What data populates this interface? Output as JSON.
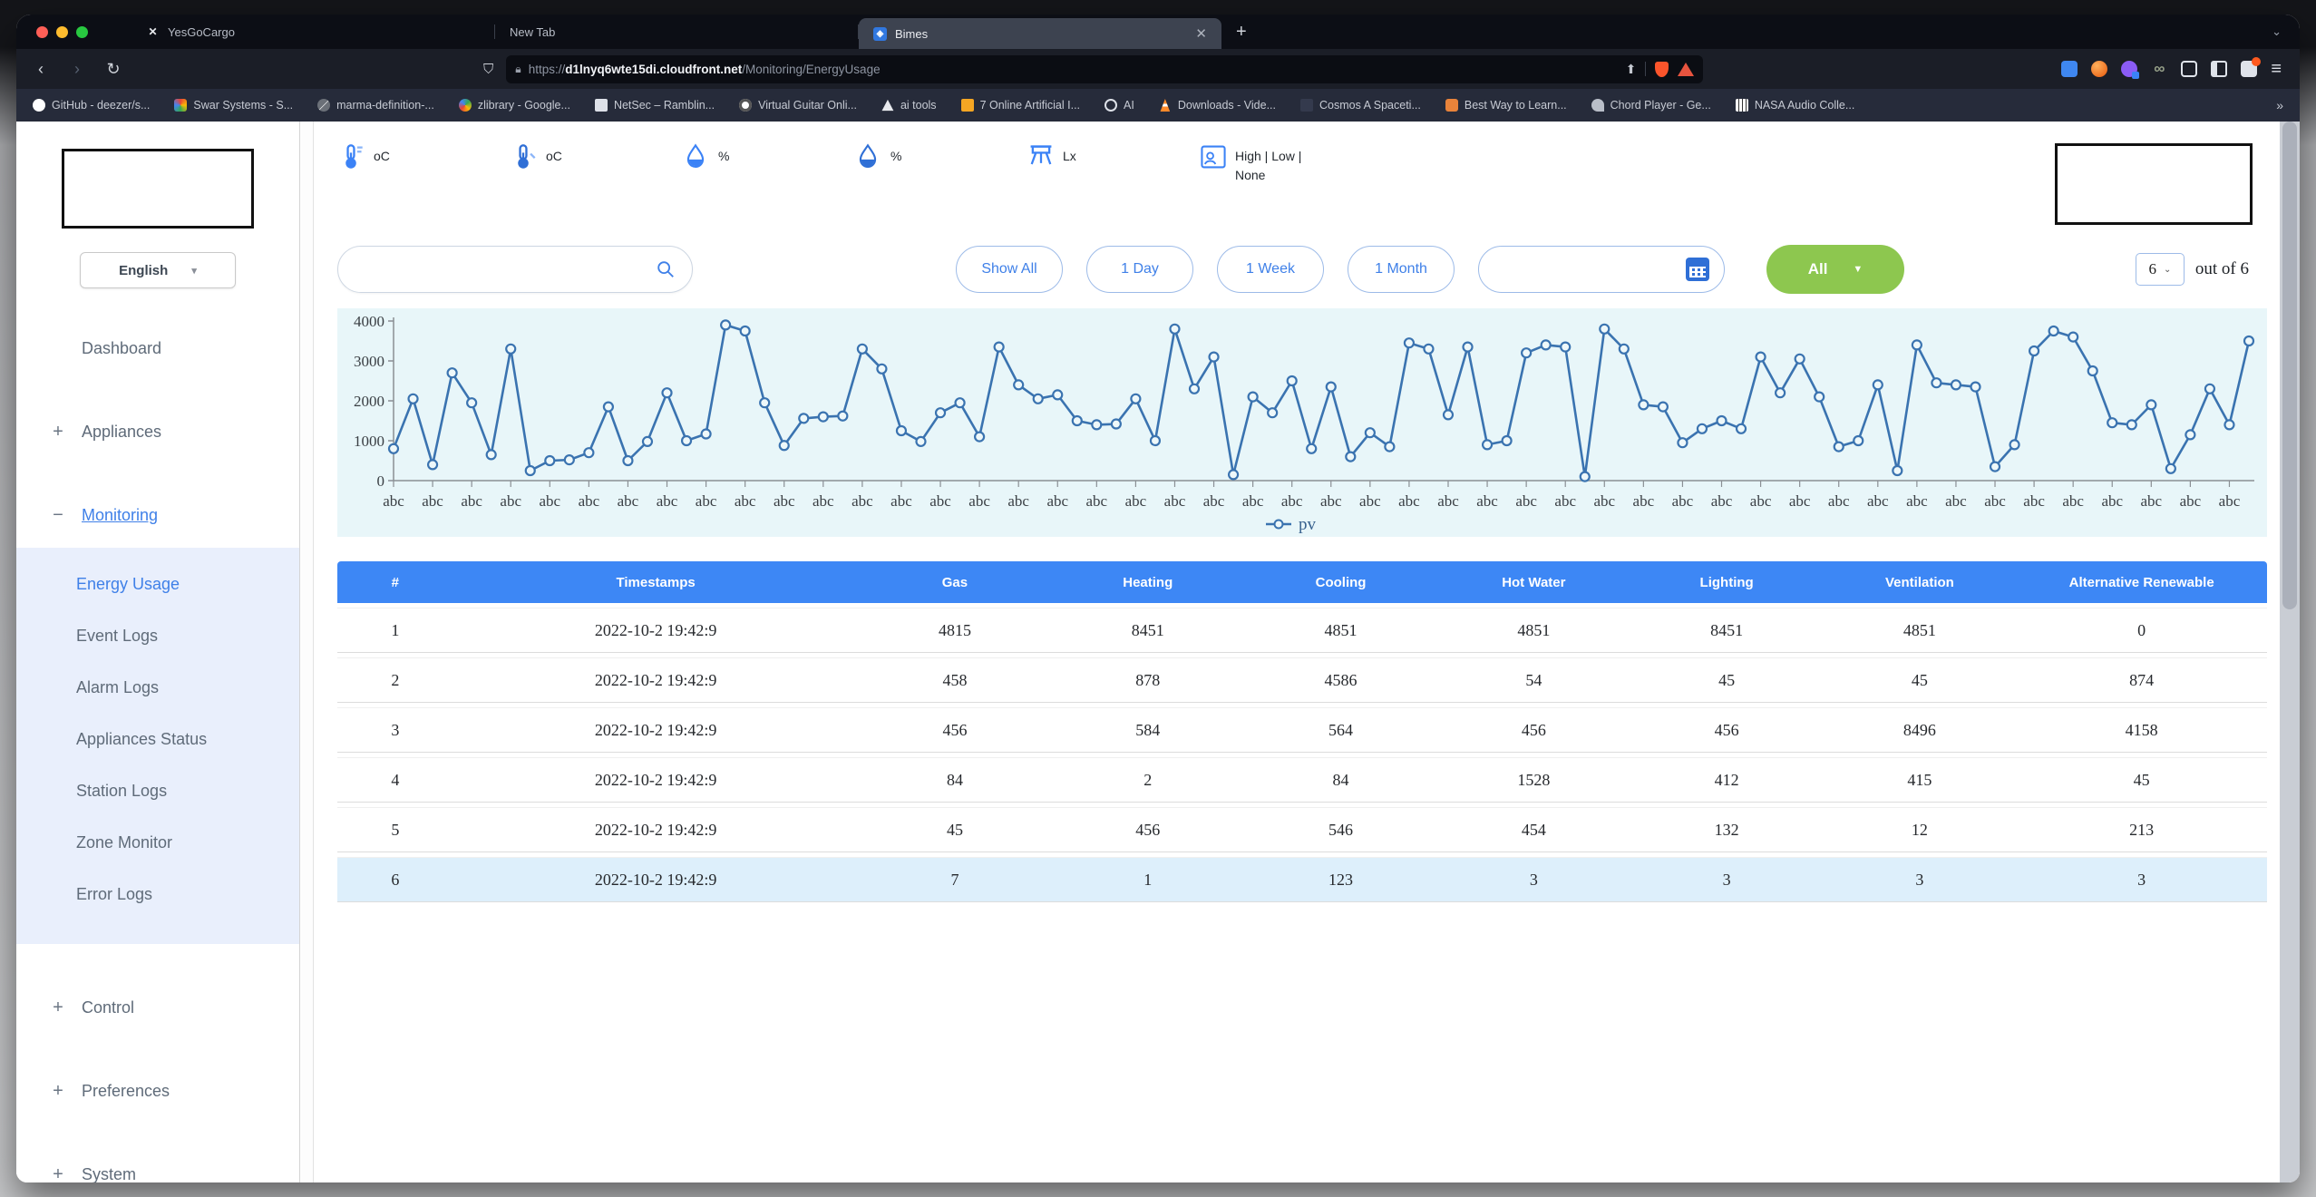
{
  "browser": {
    "tabs": [
      {
        "label": "YesGoCargo",
        "favicon": "yesgocargo",
        "favicon_glyph": "✕",
        "active": false
      },
      {
        "label": "New Tab",
        "favicon": null,
        "favicon_glyph": "",
        "active": false
      },
      {
        "label": "Bimes",
        "favicon": "bimes",
        "favicon_glyph": "◈",
        "active": true
      }
    ],
    "new_tab_label": "+",
    "overflow_chevron": "⌄",
    "url": {
      "scheme": "https://",
      "domain": "d1lnyq6wte15di.cloudfront.net",
      "path": "/Monitoring/EnergyUsage"
    },
    "nav": {
      "back": "‹",
      "forward": "›",
      "reload": "↻",
      "bookmark_flag": "⛉"
    },
    "extensions": [
      "translate",
      "fox",
      "purple",
      "infinity",
      "puzzle",
      "panel",
      "profile"
    ],
    "menu_glyph": "≡",
    "bookmarks": [
      {
        "label": "GitHub - deezer/s...",
        "icon": "github"
      },
      {
        "label": "Swar Systems - S...",
        "icon": "swar"
      },
      {
        "label": "marma-definition-...",
        "icon": "marma"
      },
      {
        "label": "zlibrary - Google...",
        "icon": "google"
      },
      {
        "label": "NetSec – Ramblin...",
        "icon": "netsec"
      },
      {
        "label": "Virtual Guitar Onli...",
        "icon": "guitar"
      },
      {
        "label": "ai tools",
        "icon": "aitools"
      },
      {
        "label": "7 Online Artificial I...",
        "icon": "seven"
      },
      {
        "label": "AI",
        "icon": "aiglobe"
      },
      {
        "label": "Downloads - Vide...",
        "icon": "vlc"
      },
      {
        "label": "Cosmos A Spaceti...",
        "icon": "cosmos"
      },
      {
        "label": "Best Way to Learn...",
        "icon": "bestway"
      },
      {
        "label": "Chord Player - Ge...",
        "icon": "chord"
      },
      {
        "label": "NASA Audio Colle...",
        "icon": "nasa"
      }
    ],
    "bookmarks_overflow": "»"
  },
  "sidebar": {
    "language": {
      "value": "English",
      "chevron": "▾"
    },
    "items": [
      {
        "label": "Dashboard",
        "type": "link",
        "glyph": ""
      },
      {
        "label": "Appliances",
        "type": "group",
        "glyph": "+"
      },
      {
        "label": "Monitoring",
        "type": "group",
        "glyph": "−",
        "active": true,
        "children": [
          {
            "label": "Energy Usage",
            "active": true
          },
          {
            "label": "Event Logs",
            "active": false
          },
          {
            "label": "Alarm Logs",
            "active": false
          },
          {
            "label": "Appliances Status",
            "active": false
          },
          {
            "label": "Station Logs",
            "active": false
          },
          {
            "label": "Zone Monitor",
            "active": false
          },
          {
            "label": "Error Logs",
            "active": false
          }
        ]
      },
      {
        "label": "Control",
        "type": "group",
        "glyph": "+"
      },
      {
        "label": "Preferences",
        "type": "group",
        "glyph": "+"
      },
      {
        "label": "System",
        "type": "group",
        "glyph": "+"
      }
    ]
  },
  "status": {
    "items": [
      {
        "icon": "thermometer-out",
        "label": "oC",
        "label2": ""
      },
      {
        "icon": "thermometer-in",
        "label": "oC",
        "label2": ""
      },
      {
        "icon": "humidity-out",
        "label": "%",
        "label2": ""
      },
      {
        "icon": "humidity-in",
        "label": "%",
        "label2": ""
      },
      {
        "icon": "lux",
        "label": "Lx",
        "label2": ""
      },
      {
        "icon": "presence",
        "label": "High | Low |",
        "label2": "None"
      }
    ]
  },
  "filters": {
    "search": {
      "value": "",
      "placeholder": ""
    },
    "range_buttons": [
      "Show All",
      "1 Day",
      "1 Week",
      "1 Month"
    ],
    "date": {
      "value": "",
      "placeholder": ""
    },
    "category": {
      "label": "All",
      "chevron": "▼"
    }
  },
  "pagination": {
    "page_size": "6",
    "chevron": "⌄",
    "suffix": "out of 6"
  },
  "chart_data": {
    "type": "line",
    "title": "",
    "xlabel": "",
    "ylabel": "",
    "x_tick_label": "abc",
    "x_tick_count": 48,
    "points_per_tick": 2,
    "ylim": [
      0,
      4000
    ],
    "yticks": [
      0,
      1000,
      2000,
      3000,
      4000
    ],
    "grid": false,
    "legend_position": "bottom-center",
    "line_color": "#3a73b0",
    "plot_bg": "#e8f6f9",
    "series": [
      {
        "name": "pv",
        "values": [
          800,
          2050,
          400,
          2700,
          1950,
          650,
          3300,
          250,
          500,
          520,
          700,
          1850,
          500,
          980,
          2200,
          1000,
          1170,
          3900,
          3750,
          1950,
          880,
          1560,
          1600,
          1620,
          3300,
          2800,
          1250,
          980,
          1700,
          1950,
          1100,
          3350,
          2400,
          2050,
          2150,
          1500,
          1400,
          1420,
          2050,
          1000,
          3800,
          2300,
          3100,
          150,
          2100,
          1700,
          2500,
          800,
          2350,
          600,
          1200,
          850,
          3450,
          3300,
          1650,
          3350,
          900,
          1000,
          3200,
          3400,
          3350,
          100,
          3800,
          3300,
          1900,
          1850,
          950,
          1300,
          1500,
          1300,
          3100,
          2200,
          3050,
          2100,
          850,
          1000,
          2400,
          250,
          3400,
          2450,
          2400,
          2350,
          350,
          900,
          3250,
          3750,
          3600,
          2750,
          1450,
          1400,
          1900,
          300,
          1150,
          2300,
          1400,
          3500
        ]
      }
    ]
  },
  "table": {
    "columns": [
      "#",
      "Timestamps",
      "Gas",
      "Heating",
      "Cooling",
      "Hot Water",
      "Lighting",
      "Ventilation",
      "Alternative Renewable"
    ],
    "col_widths": [
      "6%",
      "21%",
      "10%",
      "10%",
      "10%",
      "10%",
      "10%",
      "10%",
      "13%"
    ],
    "rows": [
      [
        "1",
        "2022-10-2 19:42:9",
        "4815",
        "8451",
        "4851",
        "4851",
        "8451",
        "4851",
        "0"
      ],
      [
        "2",
        "2022-10-2 19:42:9",
        "458",
        "878",
        "4586",
        "54",
        "45",
        "45",
        "874"
      ],
      [
        "3",
        "2022-10-2 19:42:9",
        "456",
        "584",
        "564",
        "456",
        "456",
        "8496",
        "4158"
      ],
      [
        "4",
        "2022-10-2 19:42:9",
        "84",
        "2",
        "84",
        "1528",
        "412",
        "415",
        "45"
      ],
      [
        "5",
        "2022-10-2 19:42:9",
        "45",
        "456",
        "546",
        "454",
        "132",
        "12",
        "213"
      ],
      [
        "6",
        "2022-10-2 19:42:9",
        "7",
        "1",
        "123",
        "3",
        "3",
        "3",
        "3"
      ]
    ],
    "highlight_last_row": true,
    "header_color": "#3d87f5",
    "highlight_color": "#ddeffb"
  },
  "colors": {
    "accent": "#3f80e8",
    "green_button": "#8dc74f",
    "chart_bg": "#e8f6f9",
    "chart_line": "#3a73b0"
  }
}
